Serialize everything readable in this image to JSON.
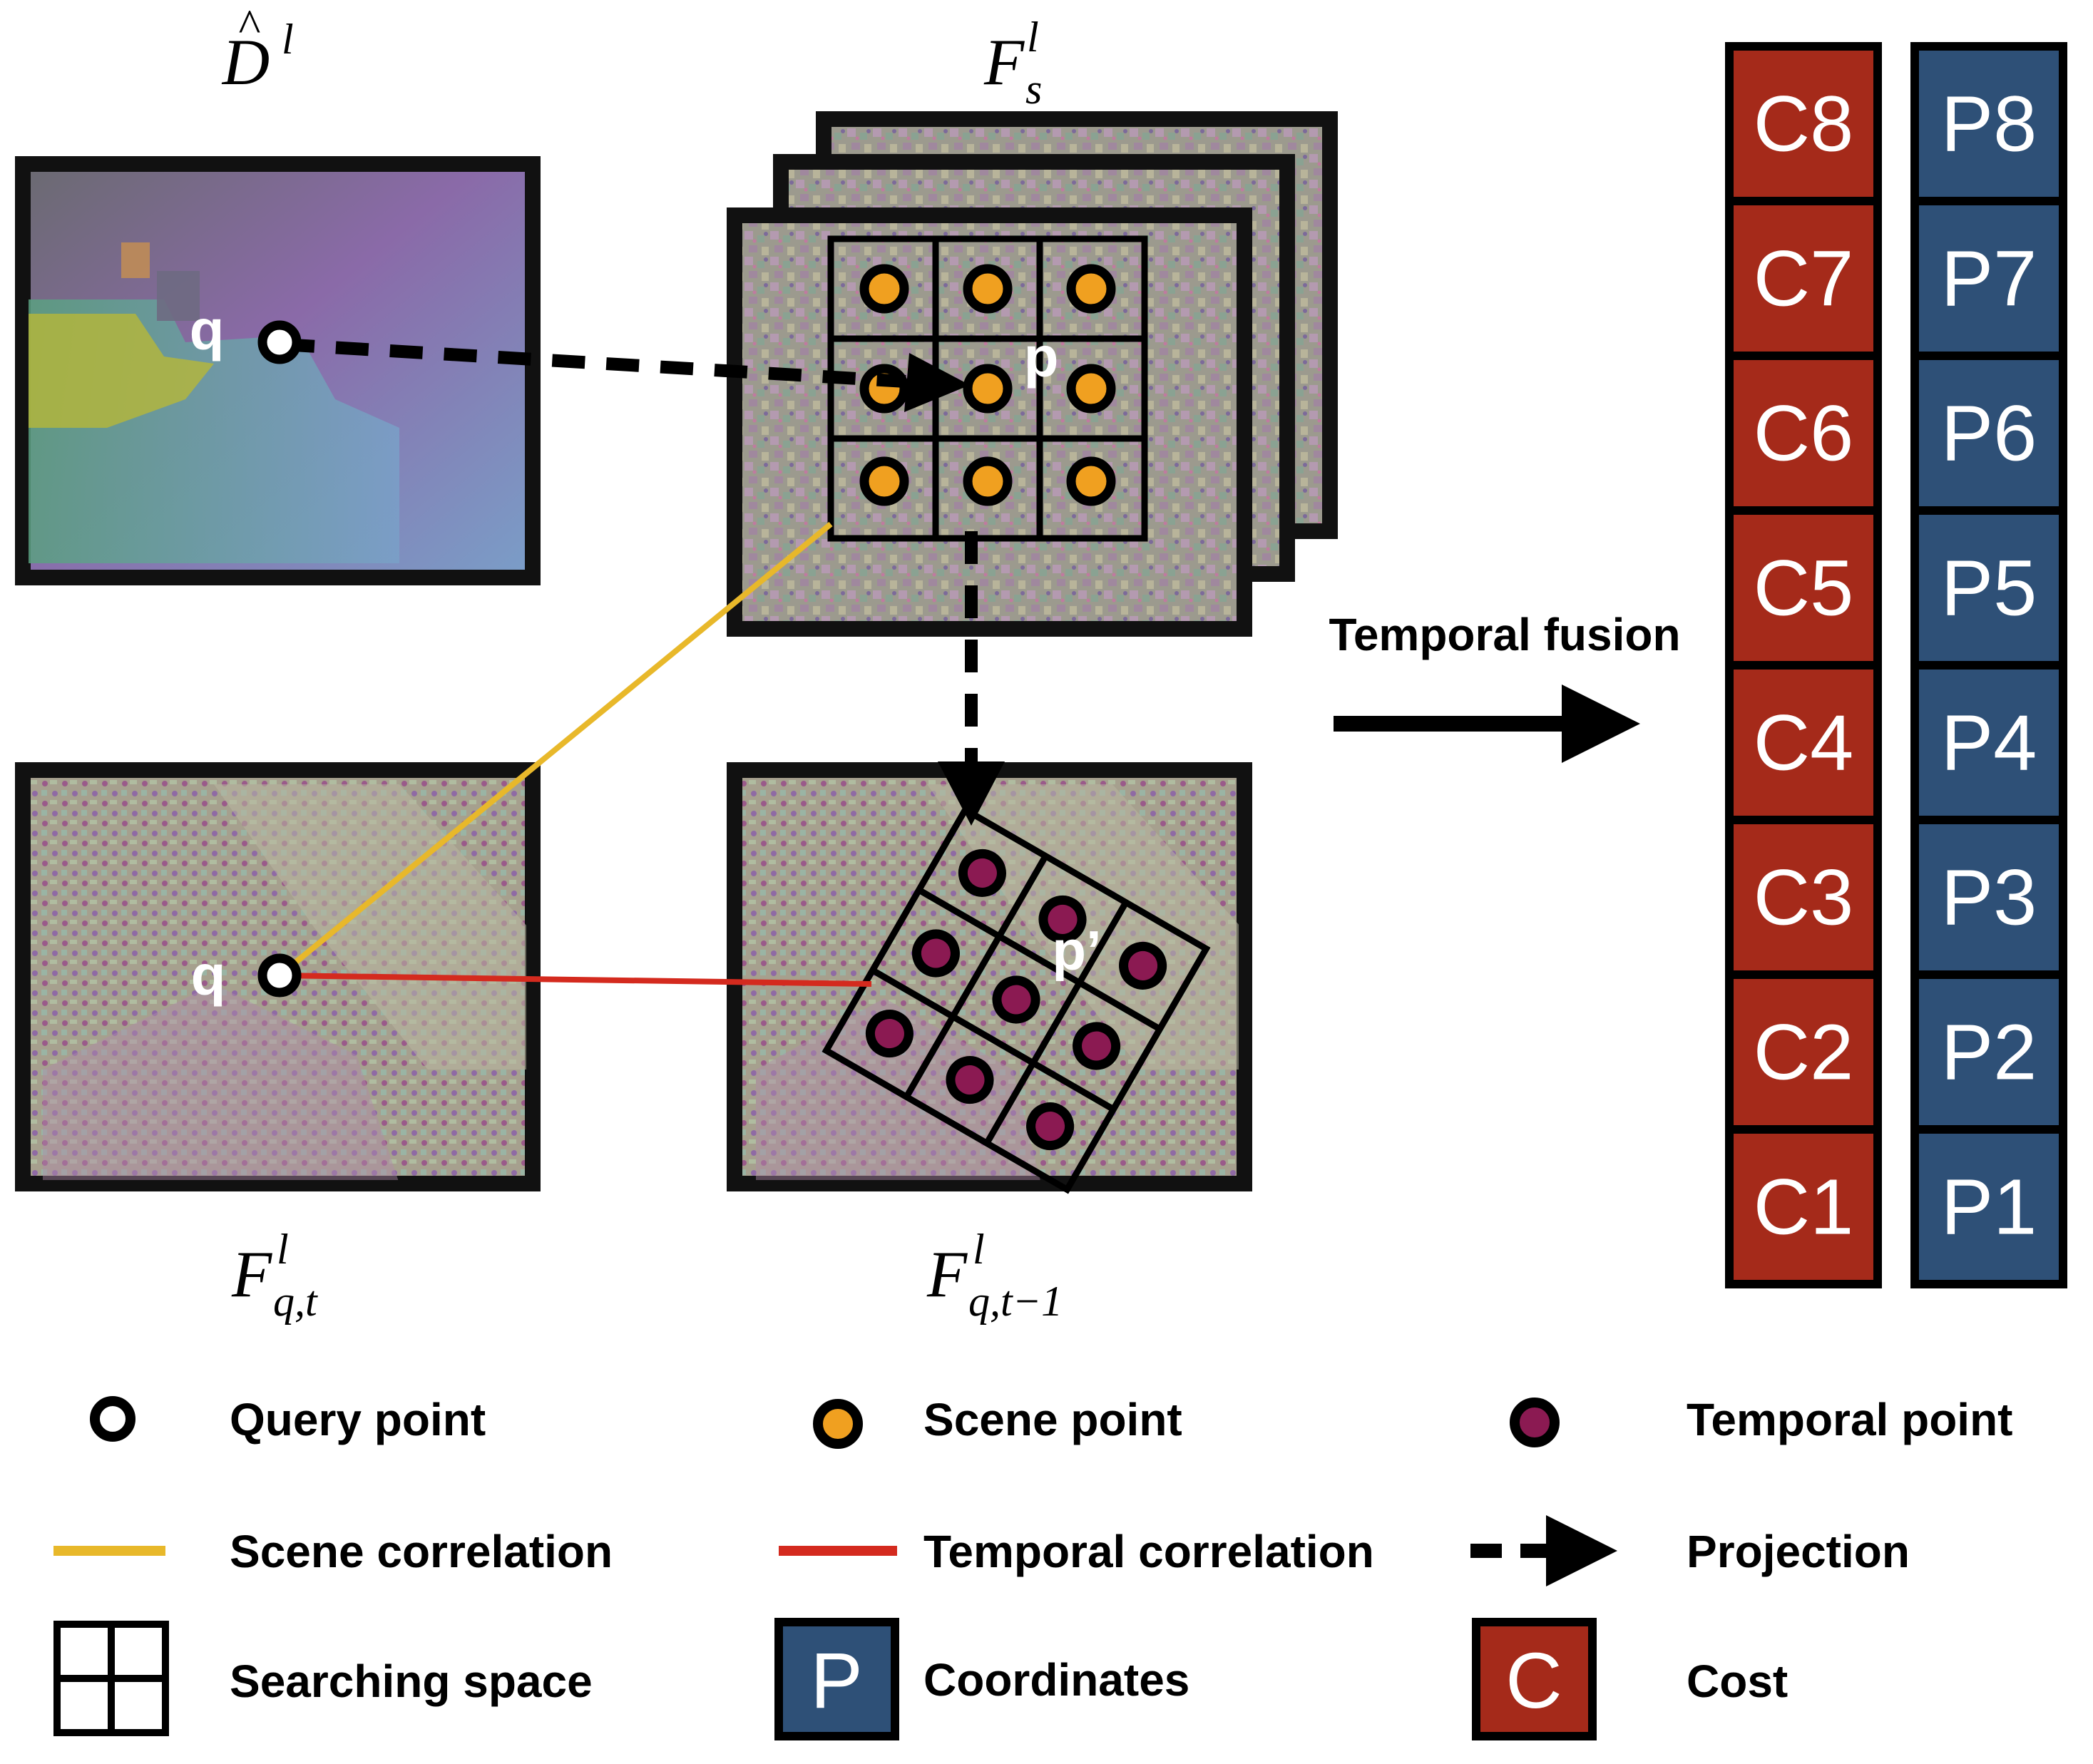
{
  "labels": {
    "depth_map": {
      "base": "D",
      "hat": "^",
      "sup": "l"
    },
    "scene_features": {
      "base": "F",
      "sup": "l",
      "sub": "s"
    },
    "query_features": {
      "base": "F",
      "sup": "l",
      "sub": "q,t"
    },
    "previous_features": {
      "base": "F",
      "sup": "l",
      "sub": "q,t−1"
    },
    "point_q_top": "q",
    "point_q_bottom": "q",
    "point_p": "p",
    "point_p_prime": "p’",
    "temporal_fusion": "Temporal fusion"
  },
  "cost_stack": [
    "C8",
    "C7",
    "C6",
    "C5",
    "C4",
    "C3",
    "C2",
    "C1"
  ],
  "coord_stack": [
    "P8",
    "P7",
    "P6",
    "P5",
    "P4",
    "P3",
    "P2",
    "P1"
  ],
  "legend": {
    "query_point": "Query point",
    "scene_point": "Scene point",
    "temporal_point": "Temporal point",
    "scene_correlation": "Scene correlation",
    "temporal_correlation": "Temporal correlation",
    "projection": "Projection",
    "searching_space": "Searching space",
    "coordinates": "Coordinates",
    "coordinates_icon": "P",
    "cost": "Cost",
    "cost_icon": "C"
  },
  "colors": {
    "cost_red": "#a52a1a",
    "coord_blue": "#2e5077",
    "scene_orange": "#f0a020",
    "temporal_purple": "#8b1a52",
    "scene_line": "#e8b82a",
    "temporal_line": "#d42a1e"
  }
}
